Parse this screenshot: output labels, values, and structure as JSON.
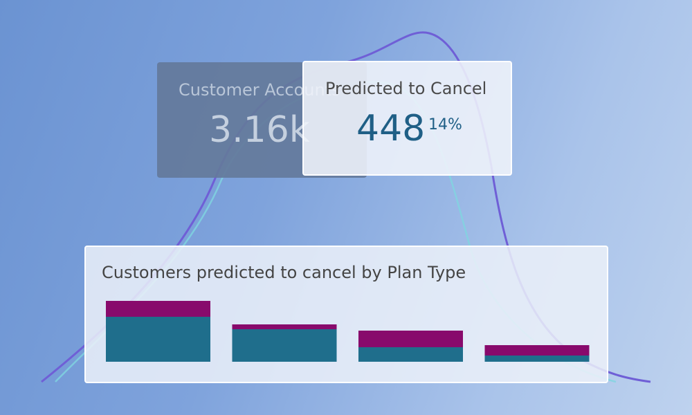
{
  "cards": [
    {
      "title": "Customer Accounts",
      "value": "3.16k"
    },
    {
      "title": "Predicted to Cancel",
      "value": "448",
      "badge": "14%"
    }
  ],
  "chart_data": {
    "type": "stacked-bar",
    "title": "Customers predicted to cancel by Plan Type",
    "categories": [
      null,
      null,
      null,
      null
    ],
    "series": [
      {
        "color": "#1f6e8c",
        "values": [
          65,
          47,
          21,
          9
        ]
      },
      {
        "color": "#880a6c",
        "values": [
          23,
          7,
          24,
          15
        ]
      }
    ],
    "ylim": [
      0,
      100
    ]
  }
}
